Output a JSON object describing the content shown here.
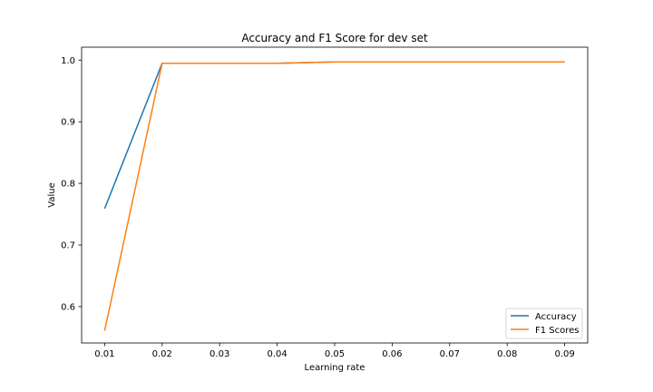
{
  "chart_data": {
    "type": "line",
    "title": "Accuracy and F1 Score for dev set",
    "xlabel": "Learning rate",
    "ylabel": "Value",
    "x": [
      0.01,
      0.02,
      0.03,
      0.04,
      0.05,
      0.06,
      0.07,
      0.08,
      0.09
    ],
    "xlim": [
      0.006,
      0.094
    ],
    "ylim": [
      0.541,
      1.021
    ],
    "xticks": [
      0.01,
      0.02,
      0.03,
      0.04,
      0.05,
      0.06,
      0.07,
      0.08,
      0.09
    ],
    "xtick_labels": [
      "0.01",
      "0.02",
      "0.03",
      "0.04",
      "0.05",
      "0.06",
      "0.07",
      "0.08",
      "0.09"
    ],
    "yticks": [
      0.6,
      0.7,
      0.8,
      0.9,
      1.0
    ],
    "ytick_labels": [
      "0.6",
      "0.7",
      "0.8",
      "0.9",
      "1.0"
    ],
    "grid": false,
    "legend_position": "lower-right",
    "series": [
      {
        "name": "Accuracy",
        "color": "#1f77b4",
        "values": [
          0.759,
          0.995,
          0.995,
          0.995,
          0.997,
          0.997,
          0.997,
          0.997,
          0.997
        ]
      },
      {
        "name": "F1 Scores",
        "color": "#ff7f0e",
        "values": [
          0.561,
          0.995,
          0.995,
          0.995,
          0.997,
          0.997,
          0.997,
          0.997,
          0.997
        ]
      }
    ]
  }
}
